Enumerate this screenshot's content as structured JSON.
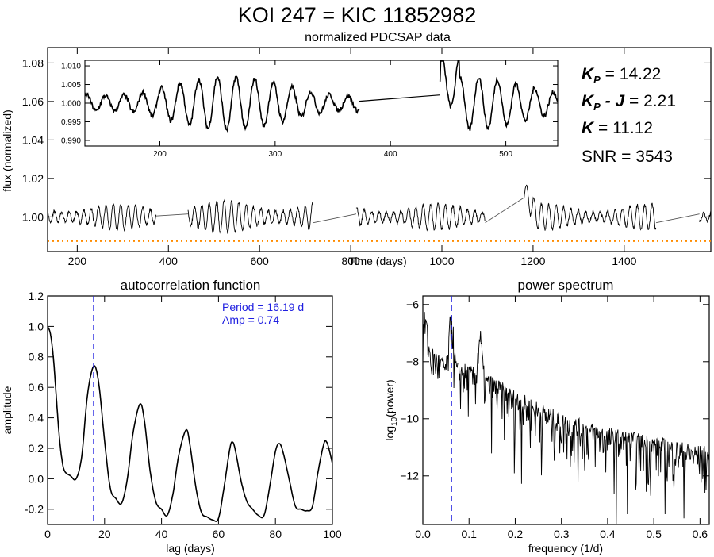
{
  "figure_title": "KOI 247 = KIC 11852982",
  "stats": {
    "kp_label": "K",
    "kp_sub": "P",
    "kp_value": " = 14.22",
    "kpj_label": "K",
    "kpj_sub": "P",
    "kpj_mid": " - J",
    "kpj_value": " =  2.21",
    "k_label": "K",
    "k_value": " = 11.12",
    "snr": "SNR = 3543"
  },
  "colors": {
    "line": "#000000",
    "marker": "#1f1fe0",
    "threshold": "#ff8c00"
  },
  "chart_data": [
    {
      "id": "lightcurve",
      "type": "line",
      "title": "normalized PDCSAP data",
      "xlabel": "Time (days)",
      "ylabel": "flux (normalized)",
      "xlim": [
        135,
        1590
      ],
      "ylim": [
        0.982,
        1.088
      ],
      "xticks": [
        200,
        400,
        600,
        800,
        1000,
        1200,
        1400
      ],
      "yticks": [
        1.0,
        1.02,
        1.04,
        1.06,
        1.08
      ],
      "ytick_labels": [
        "1.00",
        "1.02",
        "1.04",
        "1.06",
        "1.08"
      ],
      "threshold_y": 0.9875,
      "segments": [
        {
          "x0": 135,
          "x1": 373,
          "base": 1.0,
          "amp": 0.006,
          "period": 16.19
        },
        {
          "x0": 443,
          "x1": 718,
          "base": 1.0,
          "amp": 0.0075,
          "period": 16.19
        },
        {
          "x0": 812,
          "x1": 1095,
          "base": 1.0,
          "amp": 0.006,
          "period": 16.19
        },
        {
          "x0": 1180,
          "x1": 1470,
          "base": 1.0,
          "amp": 0.006,
          "period": 16.19
        },
        {
          "x0": 1565,
          "x1": 1590,
          "base": 1.0,
          "amp": 0.005,
          "period": 16.19
        }
      ],
      "inset": {
        "xlim": [
          135,
          545
        ],
        "ylim": [
          0.9885,
          1.0115
        ],
        "xticks": [
          200,
          300,
          400,
          500
        ],
        "yticks": [
          0.99,
          0.995,
          1.0,
          1.005,
          1.01
        ],
        "ytick_labels": [
          "0.990",
          "0.995",
          "1.000",
          "1.005",
          "1.010"
        ],
        "gap_line": [
          [
            373,
            1.0005
          ],
          [
            443,
            1.0022
          ]
        ]
      }
    },
    {
      "id": "acf",
      "type": "line",
      "title": "autocorrelation function",
      "xlabel": "lag (days)",
      "ylabel": "amplitude",
      "xlim": [
        0,
        100
      ],
      "ylim": [
        -0.3,
        1.2
      ],
      "xticks": [
        0,
        20,
        40,
        60,
        80,
        100
      ],
      "yticks": [
        -0.2,
        0.0,
        0.2,
        0.4,
        0.6,
        0.8,
        1.0,
        1.2
      ],
      "ytick_labels": [
        "-0.2",
        "0.0",
        "0.2",
        "0.4",
        "0.6",
        "0.8",
        "1.0",
        "1.2"
      ],
      "period_line_x": 16.19,
      "annotation_period": "Period = 16.19 d",
      "annotation_amp": "Amp = 0.74",
      "points": [
        [
          0,
          1.0
        ],
        [
          1,
          0.95
        ],
        [
          2,
          0.8
        ],
        [
          3,
          0.55
        ],
        [
          4,
          0.3
        ],
        [
          5,
          0.13
        ],
        [
          6,
          0.05
        ],
        [
          8,
          0.02
        ],
        [
          10,
          0.0
        ],
        [
          12,
          0.15
        ],
        [
          14,
          0.55
        ],
        [
          16.2,
          0.74
        ],
        [
          18,
          0.62
        ],
        [
          20,
          0.25
        ],
        [
          22,
          -0.06
        ],
        [
          24,
          -0.13
        ],
        [
          26,
          -0.16
        ],
        [
          28,
          0.0
        ],
        [
          30,
          0.3
        ],
        [
          32.4,
          0.49
        ],
        [
          34,
          0.38
        ],
        [
          36,
          0.05
        ],
        [
          38,
          -0.15
        ],
        [
          40,
          -0.2
        ],
        [
          42,
          -0.24
        ],
        [
          44,
          -0.1
        ],
        [
          46,
          0.15
        ],
        [
          48.6,
          0.32
        ],
        [
          50,
          0.22
        ],
        [
          52,
          -0.05
        ],
        [
          54,
          -0.22
        ],
        [
          56,
          -0.25
        ],
        [
          58,
          -0.27
        ],
        [
          60,
          -0.26
        ],
        [
          62,
          -0.05
        ],
        [
          64,
          0.2
        ],
        [
          65,
          0.24
        ],
        [
          66,
          0.18
        ],
        [
          68,
          -0.02
        ],
        [
          70,
          -0.15
        ],
        [
          72,
          -0.2
        ],
        [
          74,
          -0.24
        ],
        [
          76,
          -0.24
        ],
        [
          78,
          -0.05
        ],
        [
          80,
          0.18
        ],
        [
          81.5,
          0.23
        ],
        [
          83,
          0.15
        ],
        [
          85,
          -0.02
        ],
        [
          87,
          -0.18
        ],
        [
          89,
          -0.2
        ],
        [
          91,
          -0.21
        ],
        [
          93,
          -0.18
        ],
        [
          95,
          0.05
        ],
        [
          97,
          0.23
        ],
        [
          98,
          0.24
        ],
        [
          99,
          0.18
        ],
        [
          100,
          0.1
        ]
      ]
    },
    {
      "id": "power",
      "type": "line",
      "title": "power spectrum",
      "xlabel": "frequency (1/d)",
      "ylabel": "log10(power)",
      "xlim": [
        0,
        0.62
      ],
      "ylim": [
        -13.7,
        -5.7
      ],
      "xticks": [
        0.0,
        0.1,
        0.2,
        0.3,
        0.4,
        0.5,
        0.6
      ],
      "xtick_labels": [
        "0.0",
        "0.1",
        "0.2",
        "0.3",
        "0.4",
        "0.5",
        "0.6"
      ],
      "yticks": [
        -12,
        -10,
        -8,
        -6
      ],
      "ytick_labels": [
        "−12",
        "−10",
        "−8",
        "−6"
      ],
      "marker_freq": 0.0618,
      "peaks": [
        [
          0.0618,
          -6.4
        ],
        [
          0.1236,
          -7.2
        ],
        [
          0.005,
          -6.6
        ]
      ],
      "trend": [
        [
          0.0,
          -7.6
        ],
        [
          0.05,
          -8.3
        ],
        [
          0.1,
          -8.5
        ],
        [
          0.15,
          -8.9
        ],
        [
          0.2,
          -9.4
        ],
        [
          0.3,
          -10.2
        ],
        [
          0.4,
          -10.7
        ],
        [
          0.5,
          -11.0
        ],
        [
          0.62,
          -11.4
        ]
      ]
    }
  ]
}
